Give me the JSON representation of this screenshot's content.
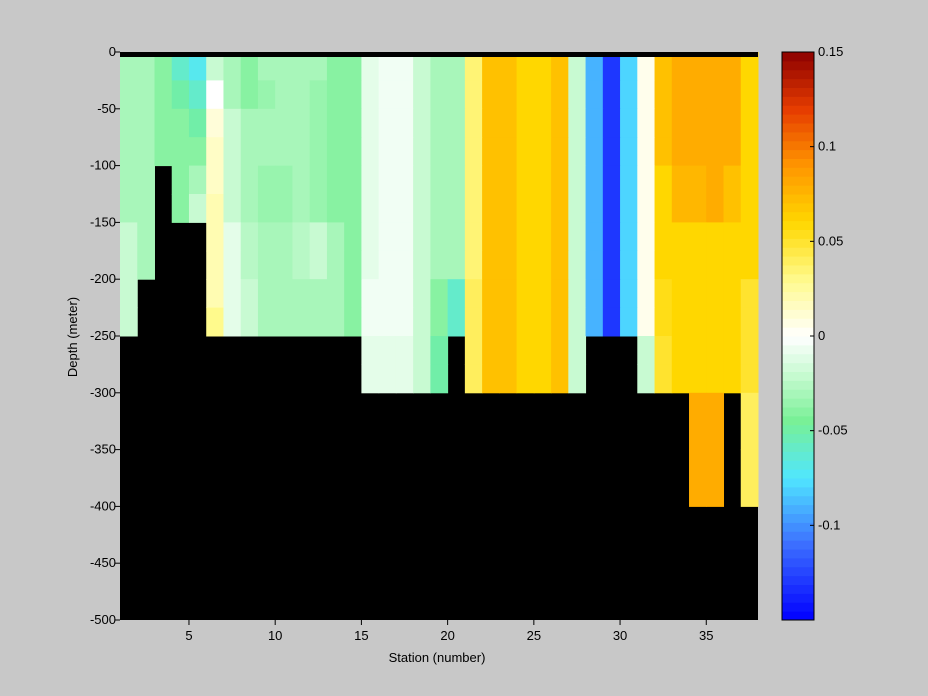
{
  "chart_data": {
    "type": "heatmap",
    "title": "",
    "xlabel": "Station (number)",
    "ylabel": "Depth (meter)",
    "xlim": [
      1,
      38
    ],
    "ylim": [
      -500,
      0
    ],
    "xticks": [
      5,
      10,
      15,
      20,
      25,
      30,
      35
    ],
    "yticks": [
      0,
      -50,
      -100,
      -150,
      -200,
      -250,
      -300,
      -350,
      -400,
      -450,
      -500
    ],
    "colorbar": {
      "range": [
        -0.15,
        0.15
      ],
      "ticks": [
        0.15,
        0.1,
        0.05,
        0,
        -0.05,
        -0.1
      ],
      "tick_labels": [
        "0.15",
        "0.1",
        "0.05",
        "0",
        "-0.05",
        "-0.1"
      ]
    },
    "no_data_color": "#000000",
    "depth_bins": [
      0,
      -25,
      -50,
      -75,
      -100,
      -125,
      -150,
      -175,
      -200,
      -225,
      -250,
      -275,
      -300,
      -350,
      -400,
      -450,
      -500
    ],
    "stations": [
      1,
      2,
      3,
      4,
      5,
      6,
      7,
      8,
      9,
      10,
      11,
      12,
      13,
      14,
      15,
      16,
      17,
      18,
      19,
      20,
      21,
      22,
      23,
      24,
      25,
      26,
      27,
      28,
      29,
      30,
      31,
      32,
      33,
      34,
      35,
      36,
      37
    ],
    "max_depth": [
      -250,
      -200,
      -75,
      -150,
      -150,
      -250,
      -250,
      -250,
      -250,
      -250,
      -250,
      -250,
      -250,
      -250,
      -300,
      -300,
      -300,
      -300,
      -300,
      -250,
      -300,
      -300,
      -300,
      -300,
      -300,
      -300,
      -300,
      -250,
      -250,
      -250,
      -300,
      -300,
      -300,
      -400,
      -400,
      -300,
      -400
    ],
    "values": [
      [
        -0.03,
        -0.03,
        -0.04,
        -0.06,
        -0.07,
        -0.02,
        -0.03,
        -0.04,
        -0.03,
        -0.03,
        -0.03,
        -0.03,
        -0.04,
        -0.04,
        -0.01,
        -0.005,
        -0.005,
        -0.02,
        -0.03,
        -0.03,
        0.035,
        0.07,
        0.07,
        0.06,
        0.06,
        0.07,
        -0.02,
        -0.09,
        -0.13,
        -0.08,
        0.005,
        0.07,
        0.08,
        0.08,
        0.08,
        0.08,
        0.06
      ],
      [
        -0.03,
        -0.03,
        -0.04,
        -0.05,
        -0.06,
        0.0,
        -0.03,
        -0.04,
        -0.035,
        -0.03,
        -0.03,
        -0.035,
        -0.04,
        -0.04,
        -0.01,
        -0.005,
        -0.005,
        -0.02,
        -0.03,
        -0.03,
        0.035,
        0.07,
        0.07,
        0.06,
        0.06,
        0.07,
        -0.02,
        -0.09,
        -0.13,
        -0.08,
        0.005,
        0.07,
        0.08,
        0.08,
        0.08,
        0.08,
        0.06
      ],
      [
        -0.03,
        -0.03,
        -0.04,
        -0.04,
        -0.05,
        0.01,
        -0.02,
        -0.03,
        -0.03,
        -0.03,
        -0.03,
        -0.035,
        -0.04,
        -0.04,
        -0.01,
        -0.005,
        -0.005,
        -0.02,
        -0.03,
        -0.03,
        0.035,
        0.07,
        0.07,
        0.06,
        0.06,
        0.07,
        -0.02,
        -0.09,
        -0.13,
        -0.08,
        0.005,
        0.07,
        0.08,
        0.08,
        0.08,
        0.08,
        0.06
      ],
      [
        -0.03,
        -0.03,
        -0.04,
        -0.04,
        -0.04,
        0.015,
        -0.02,
        -0.03,
        -0.03,
        -0.03,
        -0.03,
        -0.035,
        -0.04,
        -0.04,
        -0.01,
        -0.005,
        -0.005,
        -0.02,
        -0.03,
        -0.03,
        0.035,
        0.07,
        0.07,
        0.06,
        0.06,
        0.07,
        -0.02,
        -0.09,
        -0.13,
        -0.08,
        0.005,
        0.07,
        0.08,
        0.08,
        0.08,
        0.08,
        0.06
      ],
      [
        -0.03,
        -0.03,
        null,
        -0.04,
        -0.03,
        0.015,
        -0.02,
        -0.03,
        -0.035,
        -0.035,
        -0.03,
        -0.035,
        -0.04,
        -0.04,
        -0.01,
        -0.005,
        -0.005,
        -0.02,
        -0.03,
        -0.03,
        0.035,
        0.07,
        0.07,
        0.06,
        0.06,
        0.07,
        -0.02,
        -0.09,
        -0.13,
        -0.08,
        0.005,
        0.06,
        0.075,
        0.075,
        0.08,
        0.07,
        0.06
      ],
      [
        -0.03,
        -0.03,
        null,
        -0.04,
        -0.02,
        0.02,
        -0.02,
        -0.03,
        -0.035,
        -0.035,
        -0.03,
        -0.035,
        -0.04,
        -0.04,
        -0.01,
        -0.005,
        -0.005,
        -0.02,
        -0.03,
        -0.03,
        0.035,
        0.07,
        0.07,
        0.06,
        0.06,
        0.07,
        -0.02,
        -0.09,
        -0.13,
        -0.08,
        0.005,
        0.06,
        0.075,
        0.075,
        0.08,
        0.07,
        0.06
      ],
      [
        -0.02,
        -0.03,
        null,
        null,
        null,
        0.02,
        -0.01,
        -0.025,
        -0.03,
        -0.03,
        -0.025,
        -0.02,
        -0.03,
        -0.04,
        -0.01,
        -0.005,
        -0.005,
        -0.02,
        -0.03,
        -0.03,
        0.035,
        0.07,
        0.07,
        0.06,
        0.06,
        0.07,
        -0.02,
        -0.09,
        -0.13,
        -0.08,
        0.005,
        0.06,
        0.06,
        0.06,
        0.06,
        0.06,
        0.06
      ],
      [
        -0.02,
        -0.03,
        null,
        null,
        null,
        0.02,
        -0.01,
        -0.025,
        -0.03,
        -0.03,
        -0.025,
        -0.02,
        -0.03,
        -0.04,
        -0.01,
        -0.005,
        -0.005,
        -0.02,
        -0.03,
        -0.03,
        0.035,
        0.07,
        0.07,
        0.06,
        0.06,
        0.07,
        -0.02,
        -0.09,
        -0.13,
        -0.08,
        0.005,
        0.06,
        0.06,
        0.06,
        0.06,
        0.06,
        0.06
      ],
      [
        -0.02,
        null,
        null,
        null,
        null,
        0.02,
        -0.01,
        -0.02,
        -0.03,
        -0.03,
        -0.03,
        -0.03,
        -0.03,
        -0.04,
        -0.005,
        -0.005,
        -0.005,
        -0.02,
        -0.04,
        -0.06,
        0.04,
        0.07,
        0.07,
        0.06,
        0.06,
        0.07,
        -0.02,
        -0.09,
        -0.13,
        -0.08,
        0.005,
        0.055,
        0.06,
        0.06,
        0.06,
        0.06,
        0.05
      ],
      [
        -0.02,
        null,
        null,
        null,
        null,
        0.03,
        -0.01,
        -0.02,
        -0.03,
        -0.03,
        -0.03,
        -0.03,
        -0.03,
        -0.04,
        -0.005,
        -0.005,
        -0.005,
        -0.02,
        -0.04,
        -0.06,
        0.04,
        0.07,
        0.07,
        0.06,
        0.06,
        0.07,
        -0.02,
        -0.09,
        -0.13,
        -0.08,
        0.005,
        0.055,
        0.06,
        0.06,
        0.06,
        0.06,
        0.05
      ],
      [
        null,
        null,
        null,
        null,
        null,
        null,
        null,
        null,
        null,
        null,
        null,
        null,
        null,
        null,
        -0.01,
        -0.01,
        -0.01,
        -0.02,
        -0.05,
        null,
        0.04,
        0.07,
        0.07,
        0.06,
        0.06,
        0.07,
        -0.02,
        null,
        null,
        null,
        -0.02,
        0.05,
        0.06,
        0.06,
        0.06,
        0.06,
        0.05
      ],
      [
        null,
        null,
        null,
        null,
        null,
        null,
        null,
        null,
        null,
        null,
        null,
        null,
        null,
        null,
        -0.01,
        -0.01,
        -0.01,
        -0.02,
        -0.05,
        null,
        0.04,
        0.07,
        0.07,
        0.06,
        0.06,
        0.07,
        -0.02,
        null,
        null,
        null,
        -0.02,
        0.05,
        0.06,
        0.06,
        0.06,
        0.06,
        0.05
      ],
      [
        null,
        null,
        null,
        null,
        null,
        null,
        null,
        null,
        null,
        null,
        null,
        null,
        null,
        null,
        null,
        null,
        null,
        null,
        null,
        null,
        null,
        null,
        null,
        null,
        null,
        null,
        null,
        null,
        null,
        null,
        null,
        null,
        null,
        0.08,
        0.08,
        null,
        0.04
      ],
      [
        null,
        null,
        null,
        null,
        null,
        null,
        null,
        null,
        null,
        null,
        null,
        null,
        null,
        null,
        null,
        null,
        null,
        null,
        null,
        null,
        null,
        null,
        null,
        null,
        null,
        null,
        null,
        null,
        null,
        null,
        null,
        null,
        null,
        0.08,
        0.08,
        null,
        0.04
      ],
      [
        null,
        null,
        null,
        null,
        null,
        null,
        null,
        null,
        null,
        null,
        null,
        null,
        null,
        null,
        null,
        null,
        null,
        null,
        null,
        null,
        null,
        null,
        null,
        null,
        null,
        null,
        null,
        null,
        null,
        null,
        null,
        null,
        null,
        null,
        null,
        null,
        null
      ],
      [
        null,
        null,
        null,
        null,
        null,
        null,
        null,
        null,
        null,
        null,
        null,
        null,
        null,
        null,
        null,
        null,
        null,
        null,
        null,
        null,
        null,
        null,
        null,
        null,
        null,
        null,
        null,
        null,
        null,
        null,
        null,
        null,
        null,
        null,
        null,
        null,
        null
      ]
    ]
  }
}
